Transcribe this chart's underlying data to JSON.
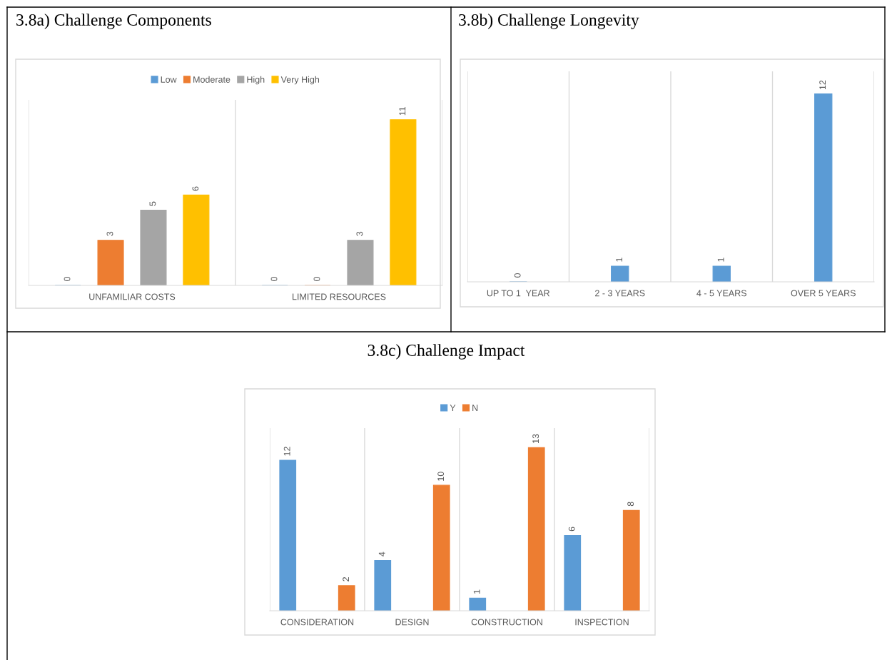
{
  "chart_data": [
    {
      "type": "bar",
      "title": "3.8a) Challenge Components",
      "categories": [
        "UNFAMILIAR COSTS",
        "LIMITED RESOURCES"
      ],
      "data_labels": true,
      "grid": "x",
      "legend": "top",
      "series": [
        {
          "name": "Low",
          "color": "#5b9bd5",
          "values": [
            0,
            0
          ]
        },
        {
          "name": "Moderate",
          "color": "#ed7d31",
          "values": [
            3,
            0
          ]
        },
        {
          "name": "High",
          "color": "#a5a5a5",
          "values": [
            5,
            3
          ]
        },
        {
          "name": "Very High",
          "color": "#ffc000",
          "values": [
            6,
            11
          ]
        }
      ]
    },
    {
      "type": "bar",
      "title": "3.8b) Challenge Longevity",
      "categories": [
        "UP TO 1  YEAR",
        "2 - 3 YEARS",
        "4 - 5 YEARS",
        "OVER 5 YEARS"
      ],
      "data_labels": true,
      "grid": "x",
      "series": [
        {
          "color": "#5b9bd5",
          "values": [
            0,
            1,
            1,
            12
          ]
        }
      ]
    },
    {
      "type": "bar",
      "title": "3.8c) Challenge Impact",
      "categories": [
        "CONSIDERATION",
        "DESIGN",
        "CONSTRUCTION",
        "INSPECTION"
      ],
      "data_labels": true,
      "grid": "x",
      "legend": "top",
      "series": [
        {
          "name": "Y",
          "color": "#5b9bd5",
          "values": [
            12,
            4,
            1,
            6
          ]
        },
        {
          "name": "N",
          "color": "#ed7d31",
          "values": [
            2,
            10,
            13,
            8
          ]
        }
      ]
    }
  ]
}
